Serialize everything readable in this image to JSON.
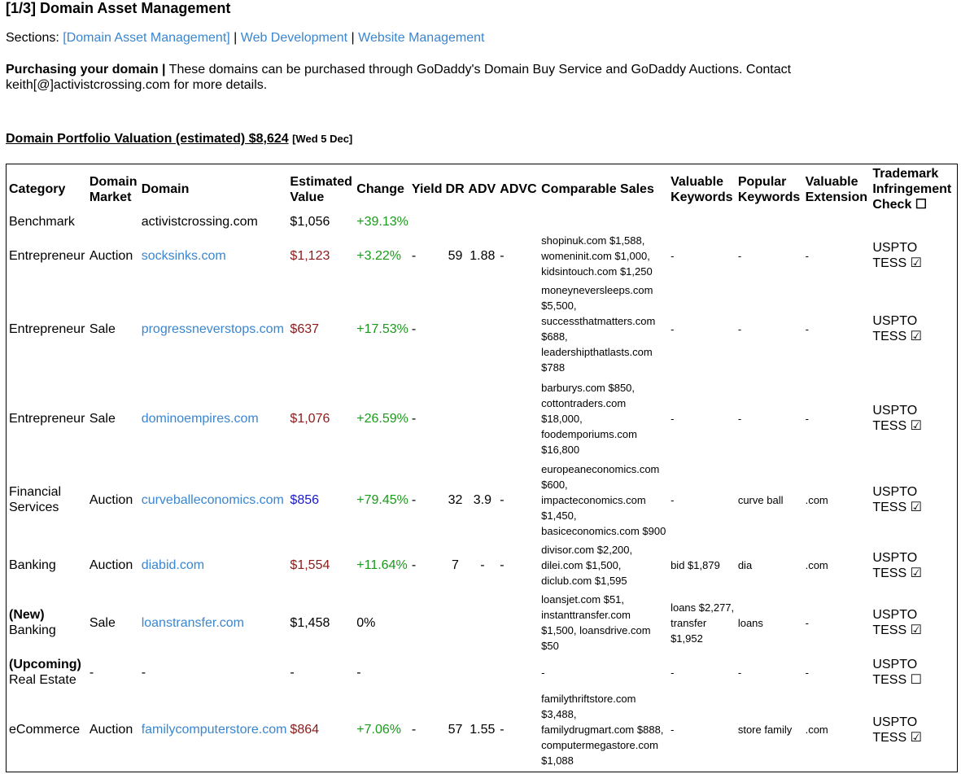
{
  "heading": "[1/3] Domain Asset Management",
  "sections": {
    "label": "Sections:",
    "links": [
      "[Domain Asset Management]",
      "Web Development",
      "Website Management"
    ],
    "separator": " | "
  },
  "purchasing": {
    "label": "Purchasing your domain |",
    "text": " These domains can be purchased through GoDaddy's Domain Buy Service and GoDaddy Auctions. Contact keith[@]activistcrossing.com for more details."
  },
  "valuation": {
    "title": "Domain Portfolio Valuation (estimated) $8,624",
    "date": "[Wed 5 Dec]"
  },
  "table": {
    "headers": {
      "category": "Category",
      "market": "Domain Market",
      "domain": "Domain",
      "value": "Estimated Value",
      "change": "Change",
      "yield": "Yield",
      "dr": "DR",
      "adv": "ADV",
      "advc": "ADVC",
      "comparable": "Comparable Sales",
      "valuable_keywords": "Valuable Keywords",
      "popular_keywords": "Popular Keywords",
      "extension": "Valuable Extension",
      "trademark": "Trademark Infringement Check ☐"
    },
    "rows": [
      {
        "prefix": "",
        "category": "Benchmark",
        "market": "",
        "domain": "activistcrossing.com",
        "domain_link": false,
        "value": "$1,056",
        "value_color": "black",
        "change": "+39.13%",
        "change_color": "green",
        "yield": "",
        "dr": "",
        "adv": "",
        "advc": "",
        "comparable": "",
        "valuable_keywords": "",
        "popular_keywords": "",
        "extension": "",
        "trademark": ""
      },
      {
        "prefix": "",
        "category": "Entrepreneur",
        "market": "Auction",
        "domain": "socksinks.com",
        "domain_link": true,
        "value": "$1,123",
        "value_color": "red",
        "change": "+3.22%",
        "change_color": "green",
        "yield": "-",
        "dr": "59",
        "adv": "1.88",
        "advc": "-",
        "comparable": "shopinuk.com $1,588, womeninit.com $1,000, kidsintouch.com $1,250",
        "valuable_keywords": "-",
        "popular_keywords": "-",
        "extension": "-",
        "trademark": "USPTO TESS ☑"
      },
      {
        "prefix": "",
        "category": "Entrepreneur",
        "market": "Sale",
        "domain": "progressneverstops.com",
        "domain_link": true,
        "value": "$637",
        "value_color": "red",
        "change": "+17.53%",
        "change_color": "green",
        "yield": "-",
        "dr": "",
        "adv": "",
        "advc": "",
        "comparable": "moneyneversleeps.com $5,500, successthatmatters.com $688, leadershipthatlasts.com $788",
        "valuable_keywords": "-",
        "popular_keywords": "-",
        "extension": "-",
        "trademark": "USPTO TESS ☑"
      },
      {
        "prefix": "",
        "category": "Entrepreneur",
        "market": "Sale",
        "domain": "dominoempires.com",
        "domain_link": true,
        "value": "$1,076",
        "value_color": "red",
        "change": "+26.59%",
        "change_color": "green",
        "yield": "-",
        "dr": "",
        "adv": "",
        "advc": "",
        "comparable": "barburys.com $850, cottontraders.com $18,000, foodemporiums.com $16,800",
        "valuable_keywords": "-",
        "popular_keywords": "-",
        "extension": "-",
        "trademark": "USPTO TESS ☑"
      },
      {
        "prefix": "",
        "category": "Financial Services",
        "market": "Auction",
        "domain": "curveballeconomics.com",
        "domain_link": true,
        "value": "$856",
        "value_color": "blue",
        "change": "+79.45%",
        "change_color": "green",
        "yield": "-",
        "dr": "32",
        "adv": "3.9",
        "advc": "-",
        "comparable": "europeaneconomics.com $600, impacteconomics.com $1,450, basiceconomics.com $900",
        "valuable_keywords": "-",
        "popular_keywords": "curve ball",
        "extension": ".com",
        "trademark": "USPTO TESS ☑"
      },
      {
        "prefix": "",
        "category": "Banking",
        "market": "Auction",
        "domain": "diabid.com",
        "domain_link": true,
        "value": "$1,554",
        "value_color": "red",
        "change": "+11.64%",
        "change_color": "green",
        "yield": "-",
        "dr": "7",
        "adv": "-",
        "advc": "-",
        "comparable": "divisor.com $2,200, dilei.com $1,500, diclub.com $1,595",
        "valuable_keywords": "bid $1,879",
        "popular_keywords": "dia",
        "extension": ".com",
        "trademark": "USPTO TESS ☑"
      },
      {
        "prefix": "(New)",
        "category": "Banking",
        "market": "Sale",
        "domain": "loanstransfer.com",
        "domain_link": true,
        "value": "$1,458",
        "value_color": "black",
        "change": "0%",
        "change_color": "black",
        "yield": "",
        "dr": "",
        "adv": "",
        "advc": "",
        "comparable": "loansjet.com $51, instanttransfer.com $1,500, loansdrive.com $50",
        "valuable_keywords": "loans $2,277, transfer $1,952",
        "popular_keywords": "loans",
        "extension": "-",
        "trademark": "USPTO TESS ☑"
      },
      {
        "prefix": "(Upcoming)",
        "category": "Real Estate",
        "market": "-",
        "domain": "-",
        "domain_link": false,
        "value": "-",
        "value_color": "black",
        "change": "-",
        "change_color": "black",
        "yield": "",
        "dr": "",
        "adv": "",
        "advc": "",
        "comparable": "-",
        "valuable_keywords": "-",
        "popular_keywords": "-",
        "extension": "-",
        "trademark": "USPTO TESS ☐"
      },
      {
        "prefix": "",
        "category": "eCommerce",
        "market": "Auction",
        "domain": "familycomputerstore.com",
        "domain_link": true,
        "value": "$864",
        "value_color": "red",
        "change": "+7.06%",
        "change_color": "green",
        "yield": "-",
        "dr": "57",
        "adv": "1.55",
        "advc": "-",
        "comparable": "familythriftstore.com $3,488, familydrugmart.com $888, computermegastore.com $1,088",
        "valuable_keywords": "-",
        "popular_keywords": "store family",
        "extension": ".com",
        "trademark": "USPTO TESS ☑"
      }
    ]
  }
}
